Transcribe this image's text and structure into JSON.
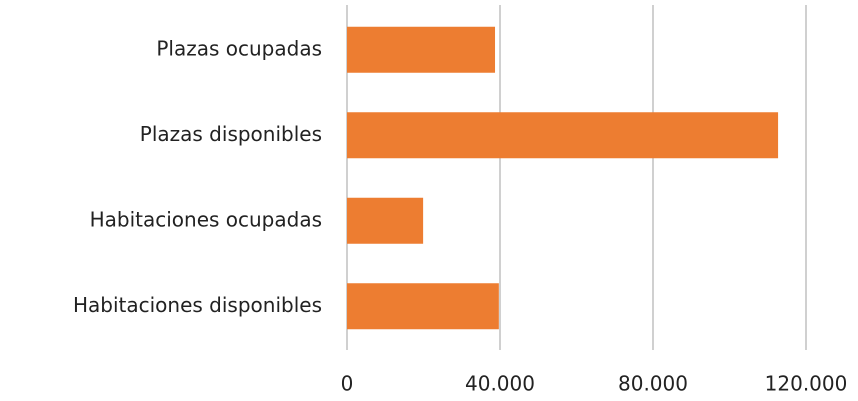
{
  "chart_data": {
    "type": "hbar",
    "categories": [
      "Plazas ocupadas",
      "Plazas disponibles",
      "Habitaciones ocupadas",
      "Habitaciones disponibles"
    ],
    "values": [
      38700,
      112700,
      19900,
      39700
    ],
    "color": "#ed7d31",
    "xlim": [
      0,
      120000
    ],
    "xticks": [
      0,
      {
        "value": 40000,
        "label": "40.000"
      },
      {
        "value": 80000,
        "label": "80.000"
      },
      {
        "value": 120000,
        "label": "120.000"
      }
    ],
    "grid": true
  }
}
